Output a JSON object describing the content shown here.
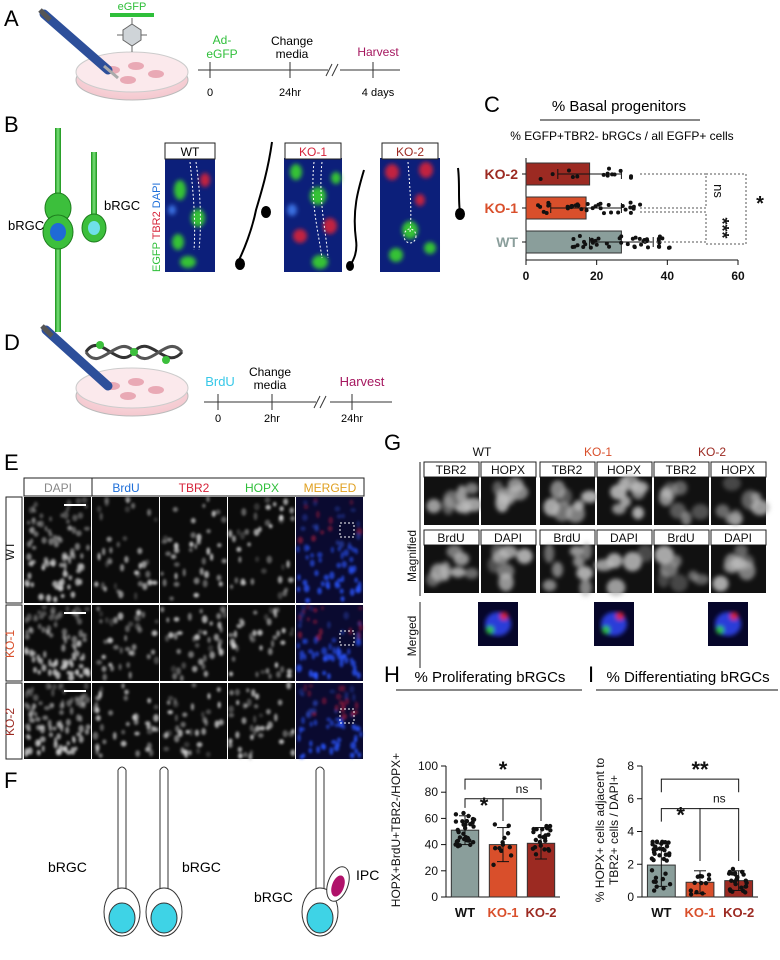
{
  "panels": {
    "A": {
      "letter": "A",
      "vector": "eGFP",
      "timeline": [
        {
          "top": "Ad-",
          "label": "eGFP",
          "bottom": "0"
        },
        {
          "top": "Change",
          "label": "media",
          "bottom": "24hr"
        },
        {
          "top": "",
          "label": "Harvest",
          "bottom": "4 days"
        }
      ]
    },
    "B": {
      "letter": "B",
      "cell_label_1": "bRGC",
      "cell_label_2": "bRGC",
      "stain_egfp": "EGFP",
      "stain_tbr2": "TBR2",
      "stain_dapi": "DAPI",
      "images": [
        "WT",
        "KO-1",
        "KO-2"
      ]
    },
    "C": {
      "letter": "C",
      "title": "% Basal progenitors",
      "subtitle": "% EGFP+TBR2- bRGCs / all EGFP+ cells"
    },
    "D": {
      "letter": "D",
      "timeline": [
        {
          "top": "",
          "label": "BrdU",
          "bottom": "0"
        },
        {
          "top": "Change",
          "label": "media",
          "bottom": "2hr"
        },
        {
          "top": "",
          "label": "Harvest",
          "bottom": "24hr"
        }
      ]
    },
    "E": {
      "letter": "E",
      "columns": [
        "DAPI",
        "BrdU",
        "TBR2",
        "HOPX",
        "MERGED"
      ],
      "rows": [
        "WT",
        "KO-1",
        "KO-2"
      ]
    },
    "F": {
      "letter": "F",
      "labels": [
        "bRGC",
        "bRGC",
        "bRGC",
        "IPC"
      ]
    },
    "G": {
      "letter": "G",
      "genotypes": [
        "WT",
        "KO-1",
        "KO-2"
      ],
      "tags_top": [
        "TBR2",
        "HOPX"
      ],
      "tags_bottom": [
        "BrdU",
        "DAPI"
      ],
      "row_magnified": "Magnified",
      "row_merged": "Merged"
    },
    "H": {
      "letter": "H",
      "title": "% Proliferating bRGCs"
    },
    "I": {
      "letter": "I",
      "title": "% Differentiating bRGCs"
    }
  },
  "colors": {
    "wt": "#8a9e9b",
    "ko1": "#d94f2b",
    "ko2": "#9c2a22",
    "green": "#2fbf3a",
    "blue": "#1e6fd9",
    "red": "#d6243a",
    "magenta": "#a5175f",
    "cyan": "#37d6e6",
    "orange": "#e0a020"
  },
  "chart_data": [
    {
      "type": "bar",
      "orientation": "horizontal",
      "panel": "C",
      "categories": [
        "KO-2",
        "KO-1",
        "WT"
      ],
      "values": [
        18,
        17,
        27
      ],
      "error": [
        9,
        10,
        9
      ],
      "xlim": [
        0,
        60
      ],
      "xticks": [
        0,
        20,
        40,
        60
      ],
      "significance": [
        {
          "a": "KO-2",
          "b": "KO-1",
          "label": "ns"
        },
        {
          "a": "KO-1",
          "b": "WT",
          "label": "***"
        },
        {
          "a": "KO-2",
          "b": "WT",
          "label": "*"
        }
      ]
    },
    {
      "type": "bar",
      "panel": "H",
      "ylabel": "HOPX+BrdU+TBR2-/HOPX+",
      "categories": [
        "WT",
        "KO-1",
        "KO-2"
      ],
      "values": [
        51,
        40,
        41
      ],
      "error": [
        11,
        13,
        12
      ],
      "ylim": [
        0,
        100
      ],
      "yticks": [
        0,
        20,
        40,
        60,
        80,
        100
      ],
      "significance": [
        {
          "a": "WT",
          "b": "KO-1",
          "label": "*"
        },
        {
          "a": "KO-1",
          "b": "KO-2",
          "label": "ns"
        },
        {
          "a": "WT",
          "b": "KO-2",
          "label": "*"
        }
      ]
    },
    {
      "type": "bar",
      "panel": "I",
      "ylabel_line1": "% HOPX+ cells adjacent to",
      "ylabel_line2": "TBR2+ cells / DAPI+",
      "categories": [
        "WT",
        "KO-1",
        "KO-2"
      ],
      "values": [
        1.95,
        0.9,
        1.0
      ],
      "error": [
        1.3,
        0.7,
        0.6
      ],
      "ylim": [
        0,
        8
      ],
      "yticks": [
        0,
        2,
        4,
        6,
        8
      ],
      "significance": [
        {
          "a": "WT",
          "b": "KO-1",
          "label": "*"
        },
        {
          "a": "KO-1",
          "b": "KO-2",
          "label": "ns"
        },
        {
          "a": "WT",
          "b": "KO-2",
          "label": "**"
        }
      ]
    }
  ]
}
